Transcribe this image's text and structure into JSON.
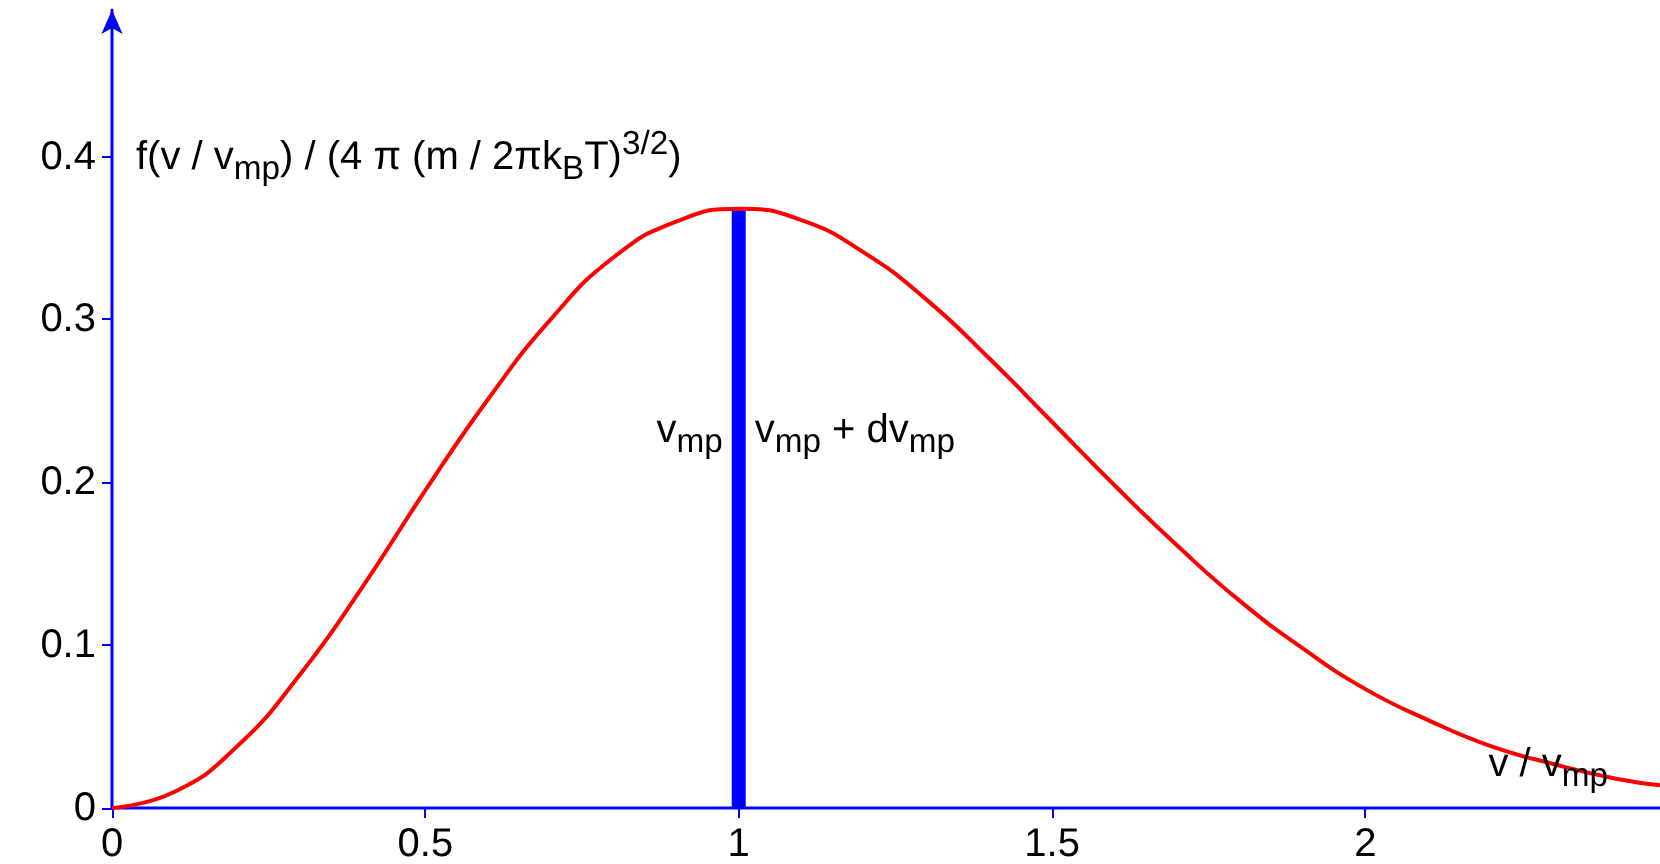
{
  "chart_data": {
    "type": "line",
    "ylabel": "f(v / v$_{mp}$) / (4 π (m / 2πk$_{B}$T)$^{3/2}$)",
    "xlabel": "v / v$_{mp}$",
    "xlim": [
      0,
      2.47
    ],
    "ylim": [
      0,
      0.49
    ],
    "xticks": [
      0,
      0.5,
      1,
      1.5,
      2
    ],
    "yticks": [
      0,
      0.1,
      0.2,
      0.3,
      0.4
    ],
    "grid": false,
    "marker": "none",
    "line_style": "solid",
    "series": [
      {
        "color": "#ff0000",
        "x": [
          0,
          0.1,
          0.2,
          0.3,
          0.4,
          0.5,
          0.6,
          0.7,
          0.8,
          0.9,
          1.0,
          1.1,
          1.2,
          1.3,
          1.4,
          1.5,
          1.6,
          1.7,
          1.8,
          1.9,
          2.0,
          2.1,
          2.2,
          2.3,
          2.4,
          2.47
        ],
        "values": [
          0,
          0.01,
          0.038,
          0.082,
          0.136,
          0.195,
          0.251,
          0.3,
          0.338,
          0.36,
          0.368,
          0.361,
          0.341,
          0.312,
          0.276,
          0.237,
          0.198,
          0.161,
          0.127,
          0.098,
          0.073,
          0.054,
          0.038,
          0.027,
          0.018,
          0.014
        ]
      },
      {
        "type": "bar",
        "color": "#0000ff",
        "x": [
          1.0
        ],
        "values": [
          0.368
        ]
      }
    ],
    "annotations": [
      {
        "text": "v$_{mp}$",
        "x": 1.0,
        "y": 0.23
      },
      {
        "text": "v$_{mp}$ + dv$_{mp}$",
        "x": 1.0,
        "y": 0.23
      }
    ]
  }
}
